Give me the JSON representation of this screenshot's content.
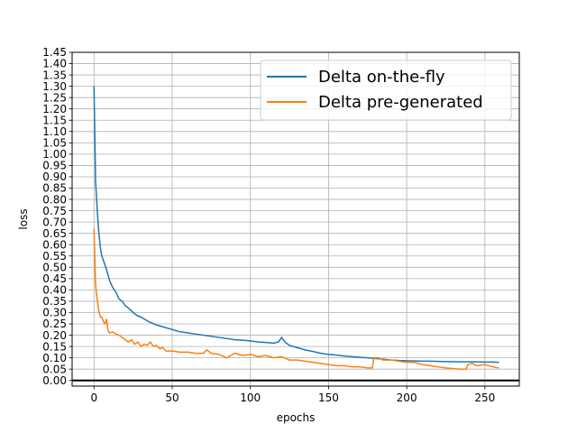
{
  "chart_data": {
    "type": "line",
    "title": "",
    "xlabel": "epochs",
    "ylabel": "loss",
    "xlim": [
      -14,
      272
    ],
    "ylim": [
      -0.025,
      1.45
    ],
    "xticks": [
      0,
      50,
      100,
      150,
      200,
      250
    ],
    "yticks": [
      0.0,
      0.05,
      0.1,
      0.15,
      0.2,
      0.25,
      0.3,
      0.35,
      0.4,
      0.45,
      0.5,
      0.55,
      0.6,
      0.65,
      0.7,
      0.75,
      0.8,
      0.85,
      0.9,
      0.95,
      1.0,
      1.05,
      1.1,
      1.15,
      1.2,
      1.25,
      1.3,
      1.35,
      1.4,
      1.45
    ],
    "grid": true,
    "legend": "top-right",
    "baseline": 0,
    "series": [
      {
        "name": "Delta on-the-fly",
        "color": "#1f77b4",
        "points": [
          [
            0,
            1.3
          ],
          [
            1,
            0.88
          ],
          [
            2,
            0.76
          ],
          [
            3,
            0.66
          ],
          [
            4,
            0.59
          ],
          [
            5,
            0.55
          ],
          [
            6,
            0.53
          ],
          [
            8,
            0.49
          ],
          [
            10,
            0.44
          ],
          [
            12,
            0.41
          ],
          [
            14,
            0.39
          ],
          [
            16,
            0.36
          ],
          [
            18,
            0.35
          ],
          [
            20,
            0.33
          ],
          [
            22,
            0.32
          ],
          [
            25,
            0.3
          ],
          [
            28,
            0.285
          ],
          [
            30,
            0.28
          ],
          [
            35,
            0.26
          ],
          [
            40,
            0.245
          ],
          [
            45,
            0.235
          ],
          [
            50,
            0.225
          ],
          [
            55,
            0.215
          ],
          [
            60,
            0.21
          ],
          [
            65,
            0.205
          ],
          [
            70,
            0.2
          ],
          [
            75,
            0.195
          ],
          [
            80,
            0.19
          ],
          [
            85,
            0.185
          ],
          [
            90,
            0.18
          ],
          [
            95,
            0.178
          ],
          [
            100,
            0.175
          ],
          [
            105,
            0.17
          ],
          [
            110,
            0.168
          ],
          [
            115,
            0.165
          ],
          [
            118,
            0.17
          ],
          [
            120,
            0.19
          ],
          [
            121,
            0.18
          ],
          [
            123,
            0.165
          ],
          [
            125,
            0.155
          ],
          [
            130,
            0.145
          ],
          [
            135,
            0.135
          ],
          [
            140,
            0.128
          ],
          [
            145,
            0.12
          ],
          [
            150,
            0.115
          ],
          [
            155,
            0.112
          ],
          [
            160,
            0.108
          ],
          [
            165,
            0.105
          ],
          [
            170,
            0.102
          ],
          [
            175,
            0.1
          ],
          [
            180,
            0.097
          ],
          [
            185,
            0.094
          ],
          [
            190,
            0.09
          ],
          [
            195,
            0.088
          ],
          [
            200,
            0.087
          ],
          [
            205,
            0.086
          ],
          [
            210,
            0.085
          ],
          [
            215,
            0.085
          ],
          [
            220,
            0.084
          ],
          [
            225,
            0.083
          ],
          [
            230,
            0.083
          ],
          [
            235,
            0.082
          ],
          [
            240,
            0.082
          ],
          [
            245,
            0.082
          ],
          [
            250,
            0.081
          ],
          [
            255,
            0.081
          ],
          [
            259,
            0.08
          ]
        ]
      },
      {
        "name": "Delta pre-generated",
        "color": "#ff7f0e",
        "points": [
          [
            0,
            0.67
          ],
          [
            1,
            0.42
          ],
          [
            2,
            0.36
          ],
          [
            3,
            0.31
          ],
          [
            4,
            0.28
          ],
          [
            5,
            0.28
          ],
          [
            6,
            0.26
          ],
          [
            7,
            0.25
          ],
          [
            8,
            0.27
          ],
          [
            9,
            0.22
          ],
          [
            10,
            0.21
          ],
          [
            12,
            0.215
          ],
          [
            14,
            0.205
          ],
          [
            16,
            0.2
          ],
          [
            18,
            0.19
          ],
          [
            20,
            0.18
          ],
          [
            22,
            0.17
          ],
          [
            24,
            0.18
          ],
          [
            26,
            0.16
          ],
          [
            28,
            0.17
          ],
          [
            30,
            0.15
          ],
          [
            32,
            0.16
          ],
          [
            34,
            0.155
          ],
          [
            36,
            0.17
          ],
          [
            38,
            0.15
          ],
          [
            40,
            0.155
          ],
          [
            42,
            0.14
          ],
          [
            44,
            0.145
          ],
          [
            46,
            0.13
          ],
          [
            50,
            0.13
          ],
          [
            55,
            0.125
          ],
          [
            60,
            0.125
          ],
          [
            65,
            0.12
          ],
          [
            70,
            0.12
          ],
          [
            72,
            0.135
          ],
          [
            75,
            0.12
          ],
          [
            80,
            0.115
          ],
          [
            85,
            0.1
          ],
          [
            90,
            0.12
          ],
          [
            95,
            0.11
          ],
          [
            100,
            0.115
          ],
          [
            105,
            0.105
          ],
          [
            110,
            0.11
          ],
          [
            115,
            0.1
          ],
          [
            120,
            0.105
          ],
          [
            125,
            0.09
          ],
          [
            130,
            0.09
          ],
          [
            135,
            0.085
          ],
          [
            140,
            0.08
          ],
          [
            145,
            0.075
          ],
          [
            150,
            0.07
          ],
          [
            155,
            0.065
          ],
          [
            160,
            0.065
          ],
          [
            165,
            0.06
          ],
          [
            170,
            0.06
          ],
          [
            175,
            0.055
          ],
          [
            178,
            0.055
          ],
          [
            179,
            0.1
          ],
          [
            182,
            0.1
          ],
          [
            185,
            0.09
          ],
          [
            190,
            0.09
          ],
          [
            195,
            0.085
          ],
          [
            200,
            0.08
          ],
          [
            205,
            0.08
          ],
          [
            210,
            0.07
          ],
          [
            215,
            0.065
          ],
          [
            220,
            0.06
          ],
          [
            225,
            0.055
          ],
          [
            230,
            0.052
          ],
          [
            235,
            0.05
          ],
          [
            238,
            0.05
          ],
          [
            239,
            0.07
          ],
          [
            242,
            0.075
          ],
          [
            245,
            0.065
          ],
          [
            250,
            0.07
          ],
          [
            255,
            0.06
          ],
          [
            259,
            0.055
          ]
        ]
      }
    ]
  }
}
